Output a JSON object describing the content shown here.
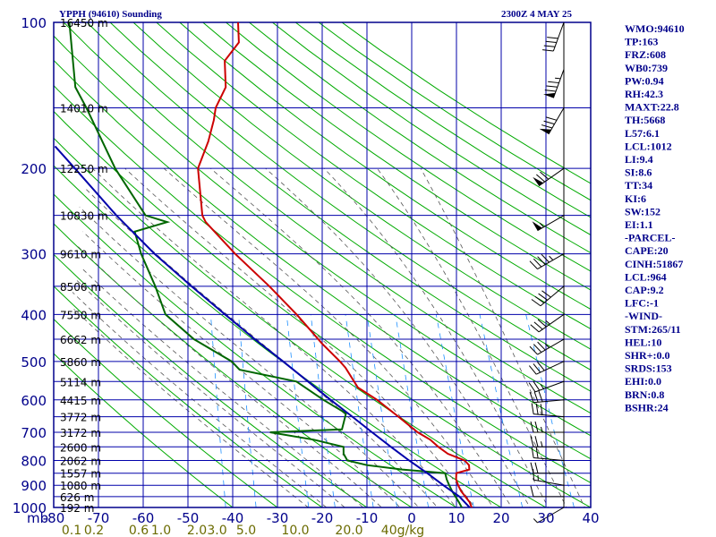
{
  "header": {
    "title": "YPPH (94610) Sounding",
    "datetime": "2300Z  4 MAY 25"
  },
  "chart_data": {
    "type": "line",
    "title": "YPPH (94610) Sounding",
    "subtitle": "2300Z  4 MAY 25",
    "xlabel": "",
    "ylabel": "mb",
    "xlim": [
      -80,
      40
    ],
    "ylim": [
      1000,
      100
    ],
    "y_scale": "log",
    "grid": true,
    "pressure_ticks": [
      "100",
      "200",
      "300",
      "400",
      "500",
      "600",
      "700",
      "800",
      "900",
      "1000"
    ],
    "pressure_values": [
      100,
      200,
      300,
      400,
      500,
      600,
      700,
      800,
      900,
      1000
    ],
    "temp_ticks": [
      "-80",
      "-70",
      "-60",
      "-50",
      "-40",
      "-30",
      "-20",
      "-10",
      "0",
      "10",
      "20",
      "30",
      "40"
    ],
    "temp_values": [
      -80,
      -70,
      -60,
      -50,
      -40,
      -30,
      -20,
      -10,
      0,
      10,
      20,
      30,
      40
    ],
    "mixing_ratio_labels": [
      {
        "t": "0.1",
        "x": -76
      },
      {
        "t": "0.2",
        "x": -71
      },
      {
        "t": "0.6",
        "x": -61
      },
      {
        "t": "1.0",
        "x": -56
      },
      {
        "t": "2.0",
        "x": -48
      },
      {
        "t": "3.0",
        "x": -43.5
      },
      {
        "t": "5.0",
        "x": -37
      },
      {
        "t": "10.0",
        "x": -26
      },
      {
        "t": "20.0",
        "x": -14
      },
      {
        "t": "40g/kg",
        "x": -2
      }
    ],
    "height_labels": [
      {
        "p": 100,
        "t": "16450 m"
      },
      {
        "p": 150,
        "t": "14010 m"
      },
      {
        "p": 200,
        "t": "12250 m"
      },
      {
        "p": 250,
        "t": "10830 m"
      },
      {
        "p": 300,
        "t": "9610 m"
      },
      {
        "p": 350,
        "t": "8506 m"
      },
      {
        "p": 400,
        "t": "7550 m"
      },
      {
        "p": 450,
        "t": "6662 m"
      },
      {
        "p": 500,
        "t": "5860 m"
      },
      {
        "p": 550,
        "t": "5114 m"
      },
      {
        "p": 600,
        "t": "4415 m"
      },
      {
        "p": 650,
        "t": "3772 m"
      },
      {
        "p": 700,
        "t": "3172 m"
      },
      {
        "p": 750,
        "t": "2600 m"
      },
      {
        "p": 800,
        "t": "2062 m"
      },
      {
        "p": 850,
        "t": "1557 m"
      },
      {
        "p": 900,
        "t": "1080 m"
      },
      {
        "p": 950,
        "t": "626 m"
      },
      {
        "p": 1000,
        "t": "192 m"
      }
    ],
    "series": [
      {
        "color": "#cc0000",
        "points": [
          [
            1011,
            13.5
          ],
          [
            1000,
            13.4
          ],
          [
            975,
            12.8
          ],
          [
            950,
            11.7
          ],
          [
            925,
            10.6
          ],
          [
            900,
            9.8
          ],
          [
            875,
            9.2
          ],
          [
            850,
            9.1
          ],
          [
            835,
            11.9
          ],
          [
            818,
            11.7
          ],
          [
            800,
            10.6
          ],
          [
            775,
            6.7
          ],
          [
            750,
            4.4
          ],
          [
            725,
            2.4
          ],
          [
            700,
            -0.6
          ],
          [
            650,
            -5.3
          ],
          [
            600,
            -10.5
          ],
          [
            566,
            -15.1
          ],
          [
            515,
            -18.4
          ],
          [
            500,
            -19.8
          ],
          [
            460,
            -24.2
          ],
          [
            420,
            -28.4
          ],
          [
            400,
            -30.7
          ],
          [
            350,
            -37.5
          ],
          [
            300,
            -46.0
          ],
          [
            258,
            -53.4
          ],
          [
            250,
            -54.3
          ],
          [
            200,
            -56.5
          ],
          [
            176,
            -54.9
          ],
          [
            159,
            -54.2
          ],
          [
            150,
            -54.1
          ],
          [
            136,
            -52.4
          ],
          [
            120,
            -53.3
          ],
          [
            110,
            -50.6
          ],
          [
            100,
            -51.3
          ]
        ]
      },
      {
        "color": "#006600",
        "points": [
          [
            1011,
            11.3
          ],
          [
            1000,
            11.2
          ],
          [
            975,
            10.4
          ],
          [
            950,
            9.5
          ],
          [
            925,
            8.6
          ],
          [
            900,
            7.8
          ],
          [
            875,
            7.1
          ],
          [
            850,
            6.6
          ],
          [
            835,
            -3.1
          ],
          [
            818,
            -11.1
          ],
          [
            800,
            -15.6
          ],
          [
            775,
            -16.6
          ],
          [
            750,
            -16.8
          ],
          [
            725,
            -23.6
          ],
          [
            700,
            -33.6
          ],
          [
            690,
            -17.6
          ],
          [
            640,
            -17.1
          ],
          [
            600,
            -22.5
          ],
          [
            550,
            -29.0
          ],
          [
            520,
            -42.0
          ],
          [
            500,
            -44.0
          ],
          [
            450,
            -53.0
          ],
          [
            400,
            -60.0
          ],
          [
            350,
            -63.0
          ],
          [
            300,
            -67.0
          ],
          [
            270,
            -69.0
          ],
          [
            258,
            -62.0
          ],
          [
            250,
            -67.0
          ],
          [
            200,
            -75.0
          ],
          [
            150,
            -83.0
          ],
          [
            136,
            -86.0
          ],
          [
            100,
            -89.0
          ]
        ]
      },
      {
        "color": "#0000aa",
        "points": [
          [
            1011,
            13.5
          ],
          [
            950,
            10.4
          ],
          [
            900,
            6.5
          ],
          [
            850,
            2.6
          ],
          [
            800,
            -1.8
          ],
          [
            750,
            -6.2
          ],
          [
            700,
            -10.8
          ],
          [
            650,
            -15.6
          ],
          [
            600,
            -20.9
          ],
          [
            550,
            -26.4
          ],
          [
            500,
            -32.5
          ],
          [
            450,
            -39.4
          ],
          [
            400,
            -46.7
          ],
          [
            350,
            -54.9
          ],
          [
            300,
            -64.0
          ],
          [
            250,
            -73.5
          ],
          [
            200,
            -84.0
          ],
          [
            180,
            -89.0
          ]
        ]
      }
    ],
    "wind_barbs": [
      {
        "p": 1000,
        "dir": 240,
        "spd": 5
      },
      {
        "p": 950,
        "dir": 270,
        "spd": 10
      },
      {
        "p": 900,
        "dir": 280,
        "spd": 15
      },
      {
        "p": 850,
        "dir": 270,
        "spd": 20
      },
      {
        "p": 800,
        "dir": 275,
        "spd": 20
      },
      {
        "p": 750,
        "dir": 270,
        "spd": 25
      },
      {
        "p": 700,
        "dir": 270,
        "spd": 25
      },
      {
        "p": 650,
        "dir": 275,
        "spd": 30
      },
      {
        "p": 600,
        "dir": 265,
        "spd": 30
      },
      {
        "p": 550,
        "dir": 250,
        "spd": 25
      },
      {
        "p": 500,
        "dir": 245,
        "spd": 30
      },
      {
        "p": 450,
        "dir": 240,
        "spd": 35
      },
      {
        "p": 400,
        "dir": 235,
        "spd": 35
      },
      {
        "p": 350,
        "dir": 230,
        "spd": 40
      },
      {
        "p": 300,
        "dir": 240,
        "spd": 45
      },
      {
        "p": 250,
        "dir": 240,
        "spd": 55
      },
      {
        "p": 200,
        "dir": 235,
        "spd": 70
      },
      {
        "p": 150,
        "dir": 210,
        "spd": 80
      },
      {
        "p": 125,
        "dir": 200,
        "spd": 85
      },
      {
        "p": 100,
        "dir": 200,
        "spd": 40
      }
    ]
  },
  "indices": [
    "WMO:94610",
    "TP:163",
    "FRZ:608",
    "WB0:739",
    "PW:0.94",
    "RH:42.3",
    "MAXT:22.8",
    "TH:5668",
    "L57:6.1",
    "LCL:1012",
    "LI:9.4",
    "SI:8.6",
    "TT:34",
    "KI:6",
    "SW:152",
    "EI:1.1",
    "-PARCEL-",
    "CAPE:20",
    "CINH:51867",
    "LCL:964",
    "CAP:9.2",
    "LFC:-1",
    "-WIND-",
    "STM:265/11",
    "HEL:10",
    "SHR+:0.0",
    "SRDS:153",
    "EHI:0.0",
    "BRN:0.8",
    "BSHR:24"
  ],
  "colors": {
    "frame": "#00008b",
    "isotherm": "#0000aa",
    "dry_adiabat": "#00aa00",
    "moist_adiabat": "#555555",
    "mixing_ratio": "#1e90ff",
    "temperature": "#cc0000",
    "dewpoint": "#006600",
    "parcel": "#0000aa"
  }
}
